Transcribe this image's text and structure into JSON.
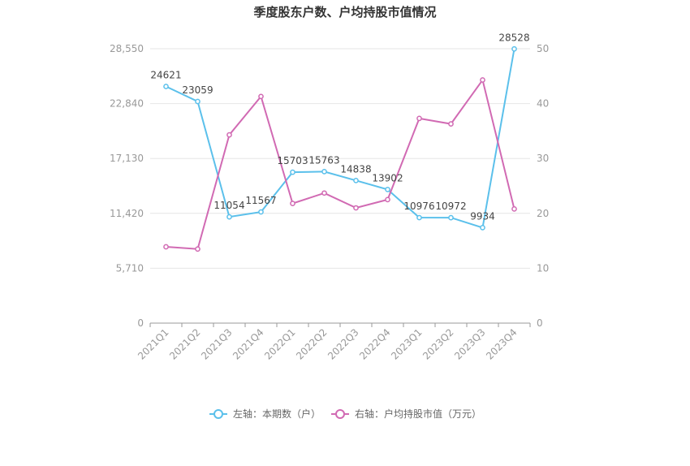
{
  "chart_data": {
    "type": "line",
    "title": "季度股东户数、户均持股市值情况",
    "categories": [
      "2021Q1",
      "2021Q2",
      "2021Q3",
      "2021Q4",
      "2022Q1",
      "2022Q2",
      "2022Q3",
      "2022Q4",
      "2023Q1",
      "2023Q2",
      "2023Q3",
      "2023Q4"
    ],
    "left_axis": {
      "ticks": [
        "0",
        "5,710",
        "11,420",
        "17,130",
        "22,840",
        "28,550"
      ],
      "ylim": [
        0,
        28550
      ]
    },
    "right_axis": {
      "ticks": [
        "0",
        "10",
        "20",
        "30",
        "40",
        "50"
      ],
      "ylim": [
        0,
        50
      ]
    },
    "series": [
      {
        "name": "左轴：本期数（户）",
        "axis": "left",
        "color": "#5bc0eb",
        "values": [
          24621,
          23059,
          11054,
          11567,
          15703,
          15763,
          14838,
          13902,
          10976,
          10972,
          9934,
          28528
        ],
        "labels": [
          "24621",
          "23059",
          "11054",
          "11567",
          "15703",
          "15763",
          "14838",
          "13902",
          "10976",
          "10972",
          "9934",
          "28528"
        ]
      },
      {
        "name": "右轴：户均持股市值（万元）",
        "axis": "right",
        "color": "#d16ab3",
        "values": [
          13.9,
          13.5,
          34.3,
          41.3,
          21.8,
          23.7,
          21.0,
          22.5,
          37.3,
          36.3,
          44.3,
          20.8
        ]
      }
    ],
    "grid": true,
    "legend_position": "bottom"
  }
}
